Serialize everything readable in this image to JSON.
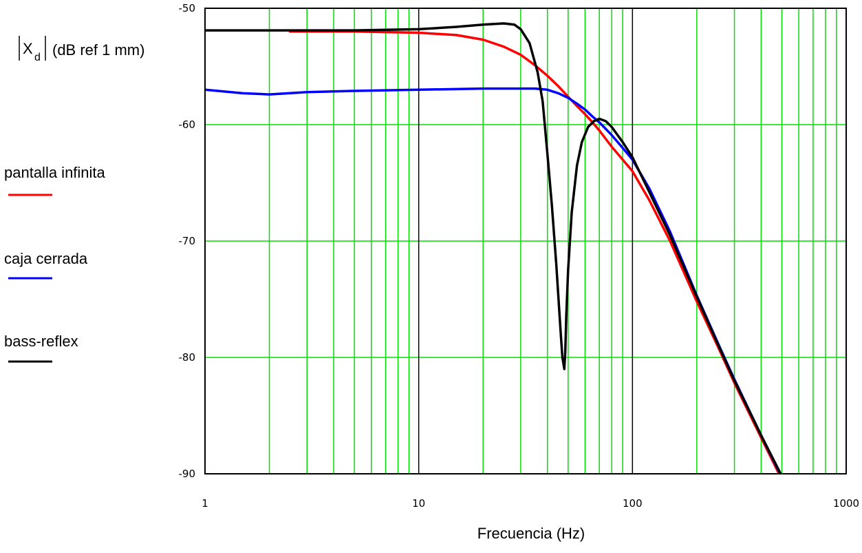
{
  "chart_data": {
    "type": "line",
    "title": "",
    "xlabel": "Frecuencia (Hz)",
    "ylabel": {
      "symbol": "X",
      "subscript": "d",
      "units": "(dB ref 1 mm)"
    },
    "xscale": "log",
    "xlim": [
      1,
      1000
    ],
    "ylim": [
      -90,
      -50
    ],
    "x_ticks": [
      1,
      10,
      100,
      1000
    ],
    "x_tick_labels": [
      "1",
      "10",
      "100",
      "1000"
    ],
    "y_ticks": [
      -50,
      -60,
      -70,
      -80,
      -90
    ],
    "y_tick_labels": [
      "-50",
      "-60",
      "-70",
      "-80",
      "-90"
    ],
    "grid": true,
    "grid_color": "#00e000",
    "major_grid_color": "#000000",
    "legend_position": "left",
    "series": [
      {
        "name": "pantalla infinita",
        "color": "#ff0000",
        "x": [
          2.5,
          5,
          10,
          15,
          20,
          25,
          30,
          35,
          40,
          45,
          50,
          55,
          60,
          65,
          70,
          80,
          90,
          100,
          120,
          150,
          200,
          250,
          300,
          400,
          500
        ],
        "y": [
          -52.0,
          -52.0,
          -52.1,
          -52.3,
          -52.7,
          -53.3,
          -54.0,
          -54.9,
          -55.8,
          -56.7,
          -57.6,
          -58.4,
          -59.1,
          -59.8,
          -60.5,
          -61.9,
          -63.0,
          -64.0,
          -66.5,
          -70.0,
          -75.2,
          -79.0,
          -82.2,
          -86.9,
          -90.5
        ]
      },
      {
        "name": "caja cerrada",
        "color": "#0000ff",
        "x": [
          1,
          1.5,
          2,
          3,
          5,
          10,
          20,
          30,
          35,
          40,
          45,
          50,
          55,
          60,
          65,
          70,
          80,
          90,
          100,
          120,
          150,
          200,
          250,
          300,
          400,
          500
        ],
        "y": [
          -57.0,
          -57.3,
          -57.4,
          -57.2,
          -57.1,
          -57.0,
          -56.9,
          -56.9,
          -56.9,
          -57.0,
          -57.3,
          -57.7,
          -58.2,
          -58.7,
          -59.3,
          -59.8,
          -60.9,
          -62.0,
          -63.0,
          -65.5,
          -69.2,
          -74.7,
          -78.7,
          -81.9,
          -86.7,
          -90.3
        ]
      },
      {
        "name": "bass-reflex",
        "color": "#000000",
        "x": [
          1,
          5,
          10,
          15,
          20,
          25,
          28,
          30,
          33,
          36,
          38,
          40,
          42,
          44,
          46,
          47,
          48,
          48.5,
          49,
          50,
          52,
          55,
          58,
          62,
          66,
          70,
          75,
          80,
          90,
          100,
          120,
          150,
          200,
          250,
          300,
          400,
          500
        ],
        "y": [
          -51.9,
          -51.9,
          -51.8,
          -51.6,
          -51.4,
          -51.3,
          -51.4,
          -51.8,
          -53.0,
          -55.5,
          -58.0,
          -62.5,
          -67.0,
          -72.0,
          -77.5,
          -80.0,
          -81.0,
          -79.5,
          -76.5,
          -72.5,
          -67.5,
          -63.5,
          -61.5,
          -60.2,
          -59.7,
          -59.5,
          -59.7,
          -60.2,
          -61.5,
          -62.8,
          -65.8,
          -69.5,
          -74.8,
          -78.8,
          -82.0,
          -86.7,
          -90.2
        ]
      }
    ]
  }
}
